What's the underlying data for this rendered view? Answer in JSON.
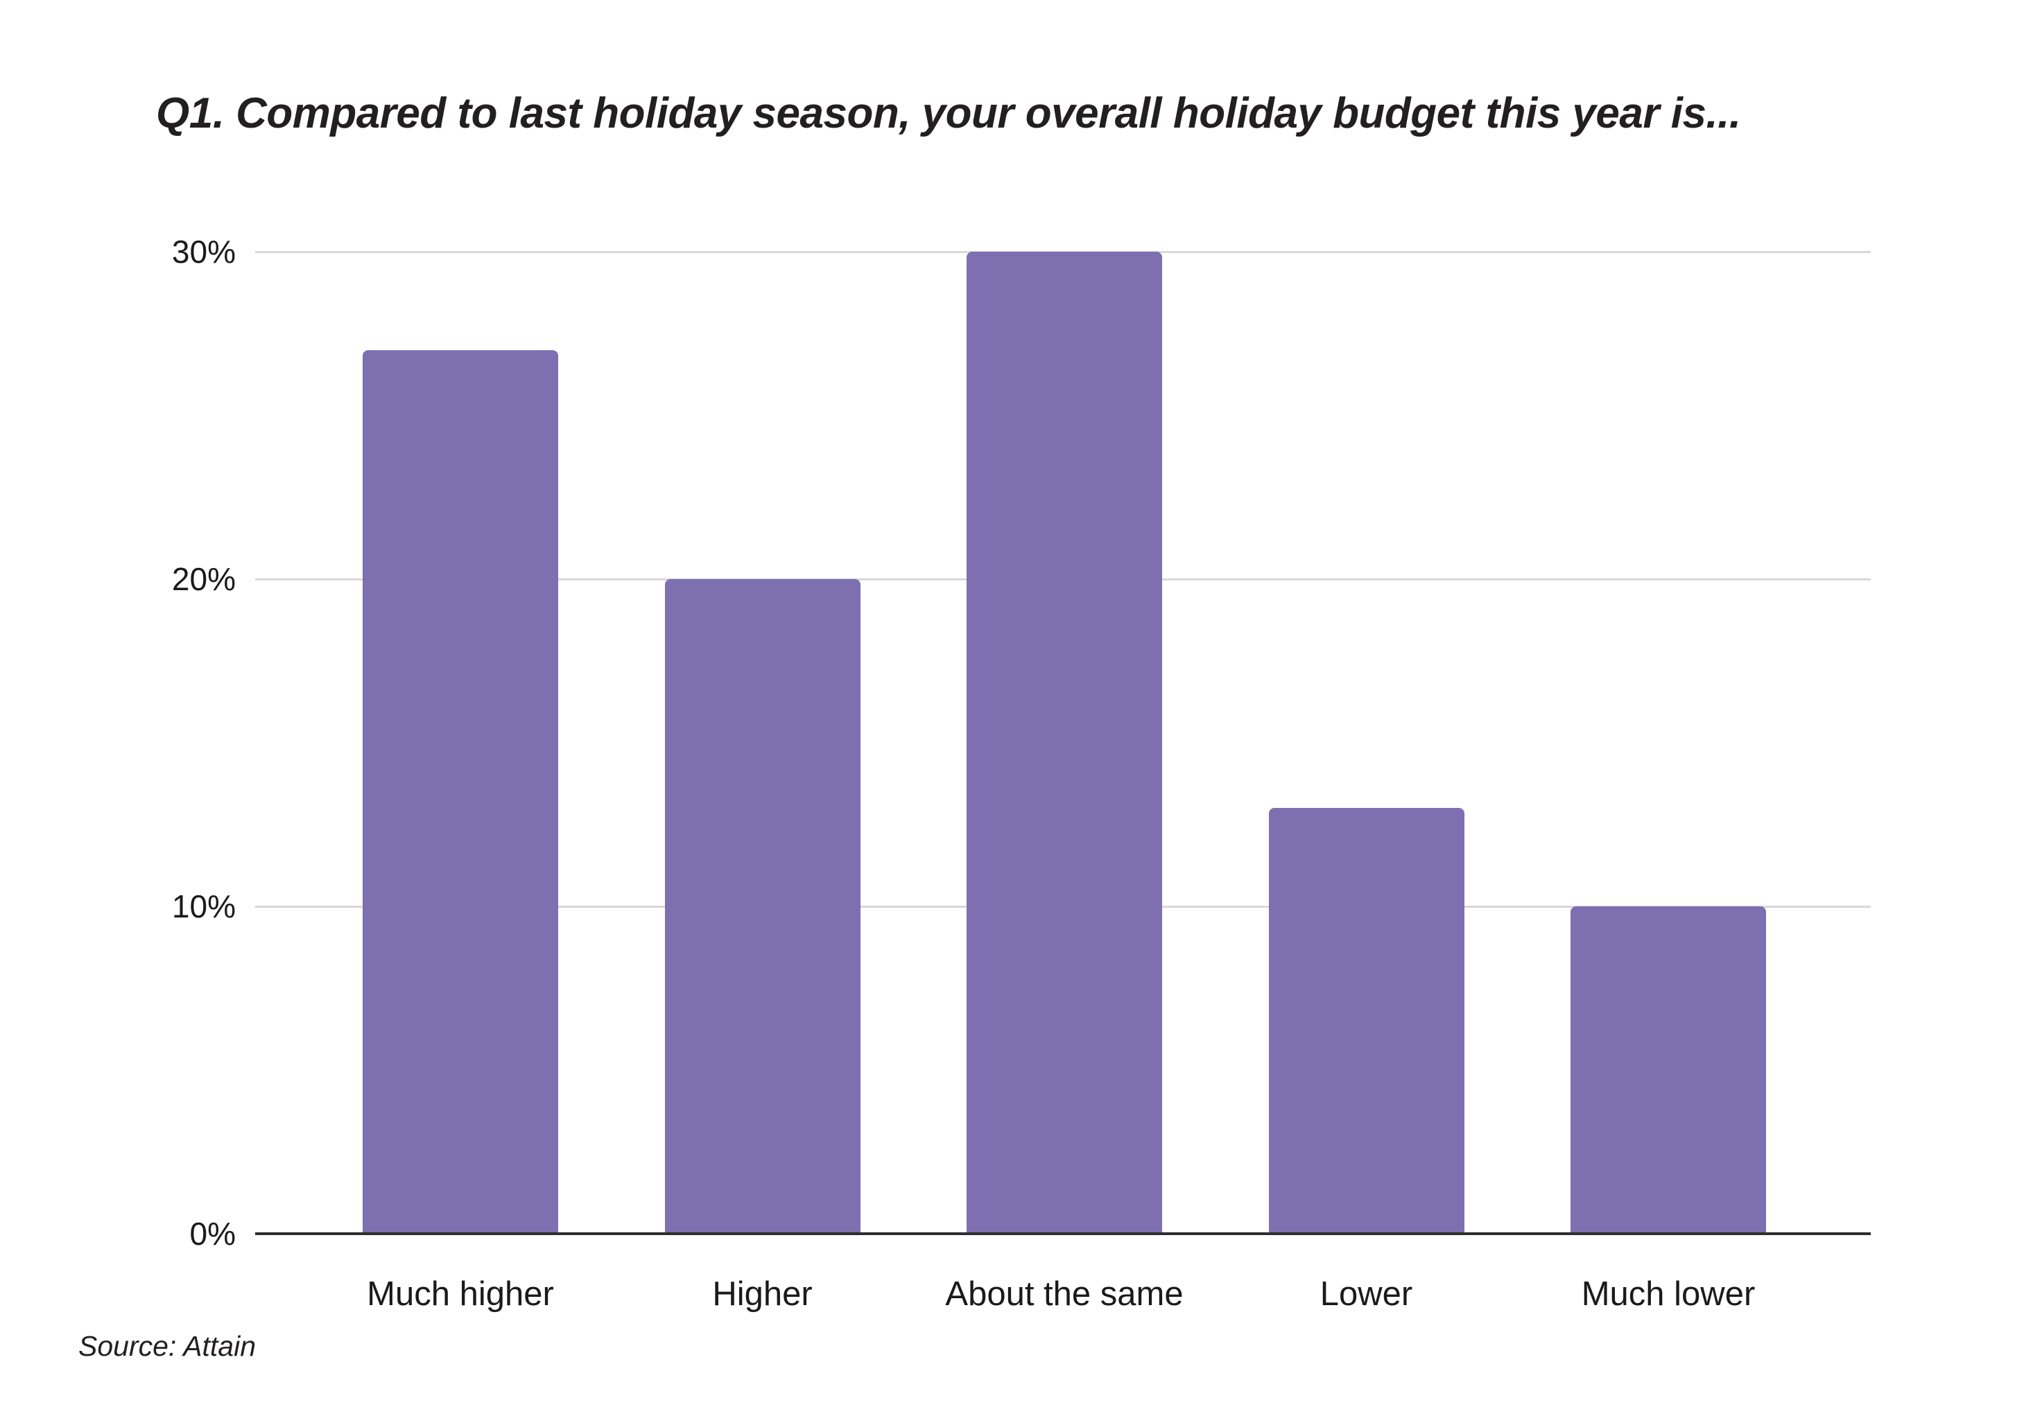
{
  "title": "Q1. Compared to last holiday season, your overall holiday budget this year is...",
  "source": "Source: Attain",
  "chart_data": {
    "type": "bar",
    "title": "Q1. Compared to last holiday season, your overall holiday budget this year is...",
    "categories": [
      "Much higher",
      "Higher",
      "About the same",
      "Lower",
      "Much lower"
    ],
    "values": [
      27,
      20,
      30,
      13,
      10
    ],
    "xlabel": "",
    "ylabel": "",
    "ylim": [
      0,
      30
    ],
    "yticks": [
      0,
      10,
      20,
      30
    ],
    "ytick_labels": [
      "0%",
      "10%",
      "20%",
      "30%"
    ],
    "grid": true,
    "legend_position": "none",
    "annotation": "Source: Attain",
    "bar_color": "#7d6fb0",
    "gridline_color": "#d8d8d8",
    "axis_color": "#2e2e2e",
    "text_color": "#1a1a1a"
  }
}
